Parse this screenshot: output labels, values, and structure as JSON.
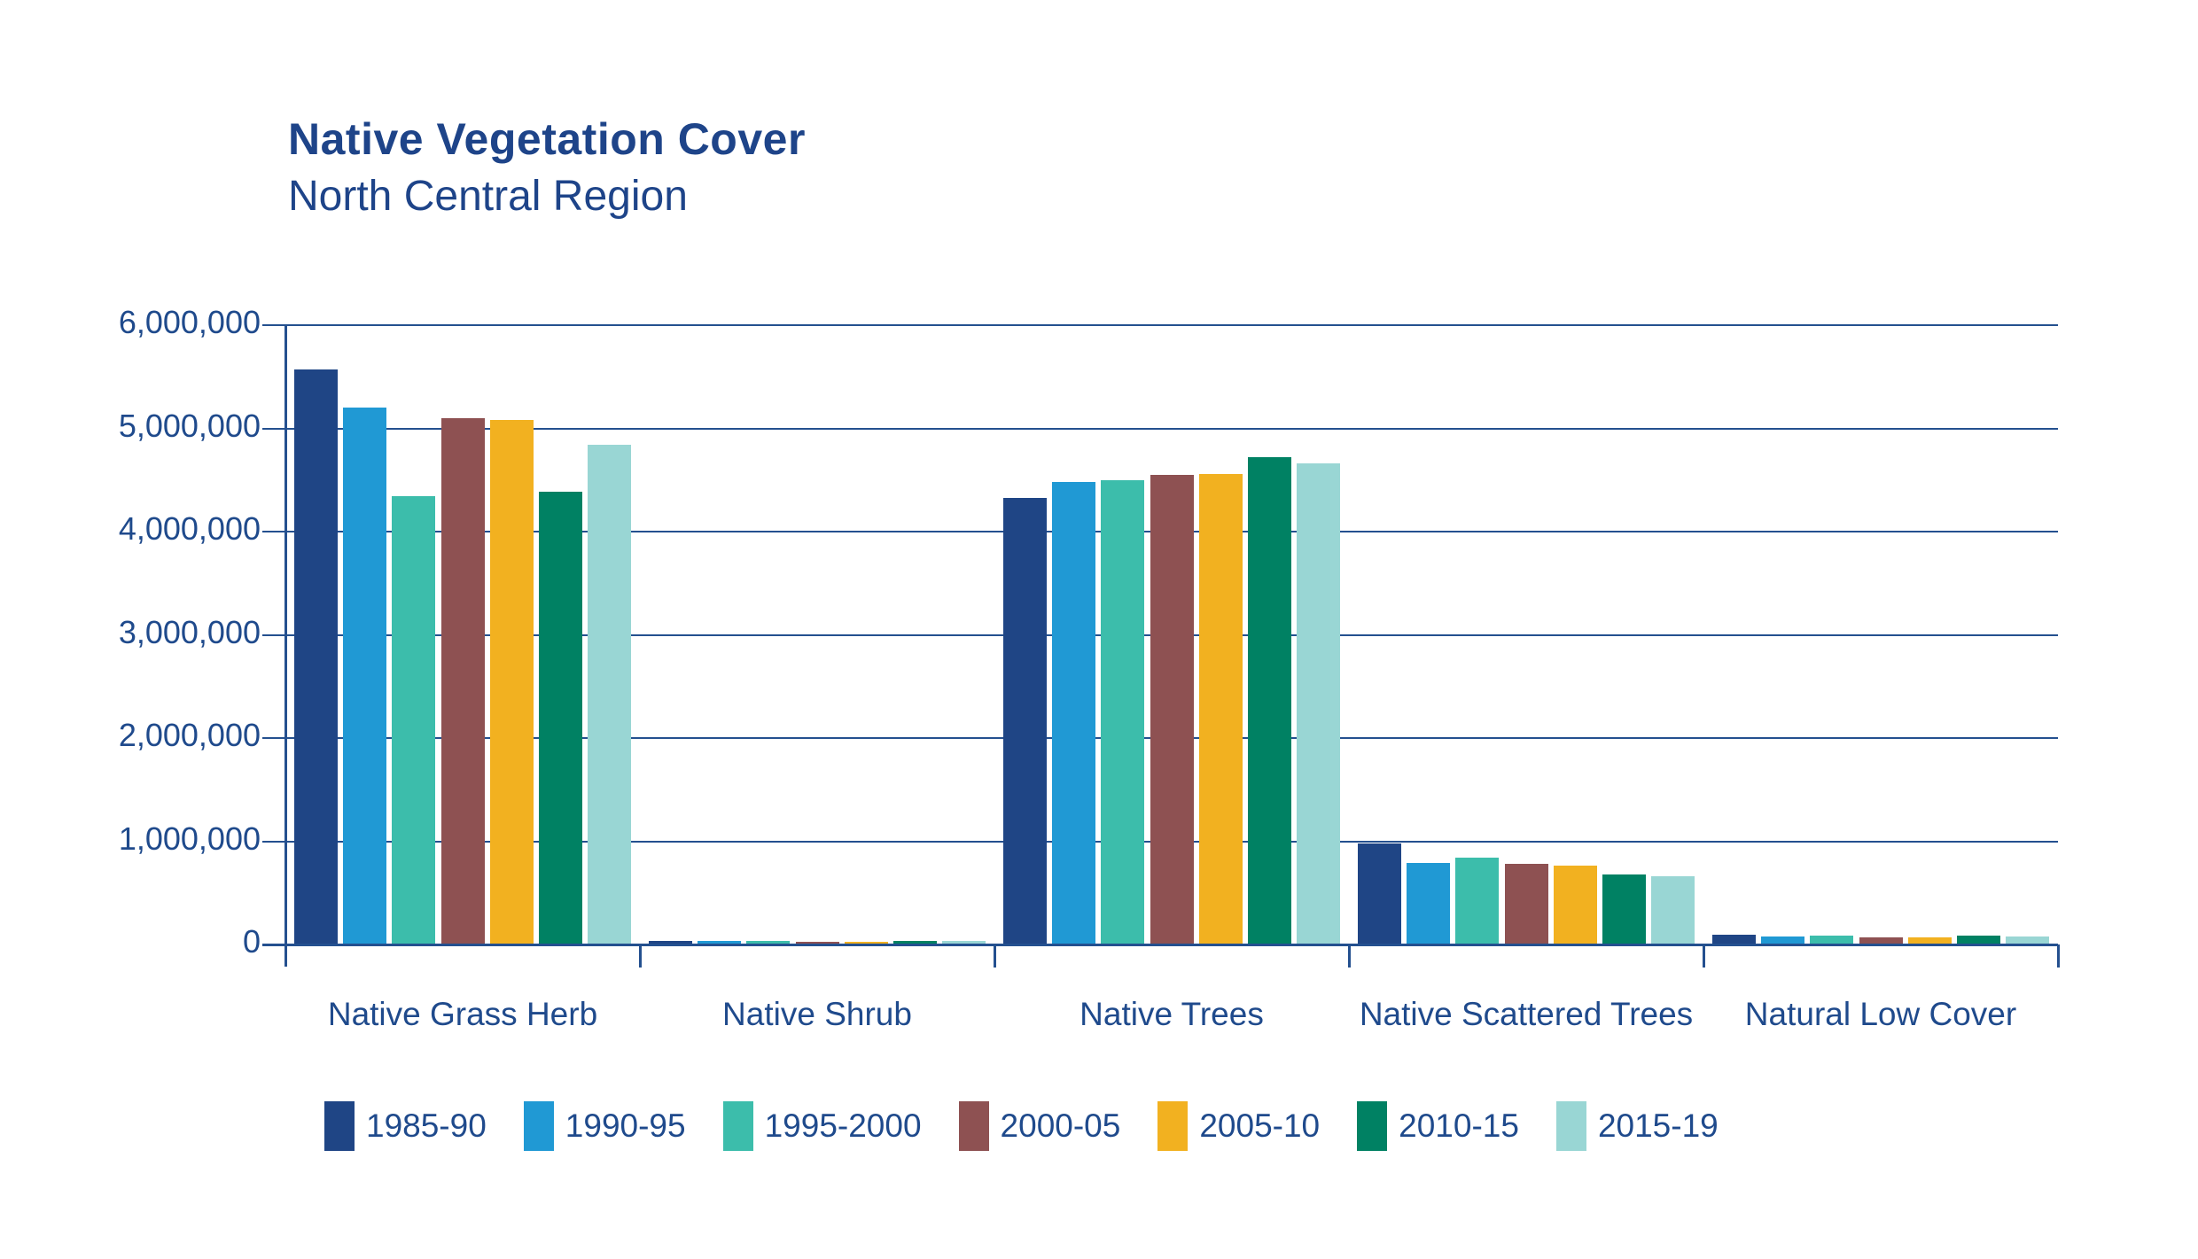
{
  "title": "Native Vegetation Cover",
  "subtitle": "North Central Region",
  "colors": {
    "title_text": "#1e4489",
    "axis_text": "#1f4a8c",
    "grid_line": "#24508f",
    "background": "#ffffff"
  },
  "chart_data": {
    "type": "bar",
    "title": "Native Vegetation Cover",
    "subtitle": "North Central Region",
    "categories": [
      "Native Grass Herb",
      "Native Shrub",
      "Native Trees",
      "Native Scattered Trees",
      "Natural Low Cover"
    ],
    "series": [
      {
        "name": "1985-90",
        "color": "#1f4585",
        "values": [
          5570000,
          32000,
          4330000,
          980000,
          98000
        ]
      },
      {
        "name": "1990-95",
        "color": "#2099d4",
        "values": [
          5200000,
          33000,
          4480000,
          790000,
          81000
        ]
      },
      {
        "name": "1995-2000",
        "color": "#3cbdab",
        "values": [
          4340000,
          38000,
          4500000,
          840000,
          86000
        ]
      },
      {
        "name": "2000-05",
        "color": "#8e5152",
        "values": [
          5100000,
          27000,
          4550000,
          780000,
          69000
        ]
      },
      {
        "name": "2005-10",
        "color": "#f2b120",
        "values": [
          5080000,
          29000,
          4560000,
          760000,
          68000
        ]
      },
      {
        "name": "2010-15",
        "color": "#008163",
        "values": [
          4390000,
          38000,
          4720000,
          680000,
          86000
        ]
      },
      {
        "name": "2015-19",
        "color": "#99d6d4",
        "values": [
          4840000,
          33000,
          4660000,
          660000,
          75000
        ]
      }
    ],
    "xlabel": "",
    "ylabel": "",
    "ylim": [
      0,
      6000000
    ],
    "yticks": [
      0,
      1000000,
      2000000,
      3000000,
      4000000,
      5000000,
      6000000
    ],
    "ytick_labels": [
      "0",
      "1,000,000",
      "2,000,000",
      "3,000,000",
      "4,000,000",
      "5,000,000",
      "6,000,000"
    ],
    "grid": true,
    "legend_position": "bottom"
  }
}
